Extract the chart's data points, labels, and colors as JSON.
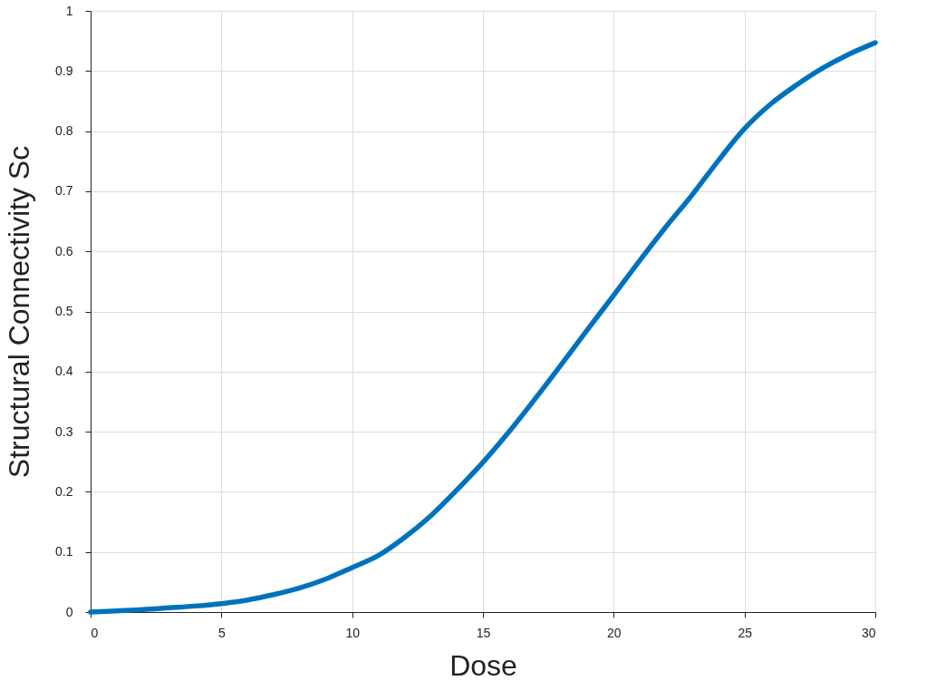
{
  "chart_data": {
    "type": "line",
    "xlabel": "Dose",
    "ylabel": "Structural Connectivity Sc",
    "x": [
      0,
      1,
      2,
      3,
      4,
      5,
      6,
      7,
      8,
      9,
      10,
      11,
      12,
      13,
      14,
      15,
      16,
      17,
      18,
      19,
      20,
      21,
      22,
      23,
      24,
      25,
      26,
      27,
      28,
      29,
      30
    ],
    "series": [
      {
        "color": "#0072bd",
        "values": [
          0,
          0.002,
          0.004,
          0.007,
          0.01,
          0.014,
          0.02,
          0.029,
          0.04,
          0.055,
          0.074,
          0.094,
          0.124,
          0.16,
          0.203,
          0.249,
          0.3,
          0.355,
          0.412,
          0.47,
          0.527,
          0.585,
          0.641,
          0.694,
          0.751,
          0.804,
          0.845,
          0.877,
          0.905,
          0.928,
          0.947
        ]
      }
    ],
    "xlim": [
      0,
      30
    ],
    "xticks": [
      0,
      5,
      10,
      15,
      20,
      25,
      30
    ],
    "ylim": [
      0,
      1
    ],
    "yticks": [
      0,
      0.1,
      0.2,
      0.3,
      0.4,
      0.5,
      0.6,
      0.7,
      0.8,
      0.9,
      1
    ],
    "grid": true,
    "marker": "none",
    "line_style": "solid"
  }
}
